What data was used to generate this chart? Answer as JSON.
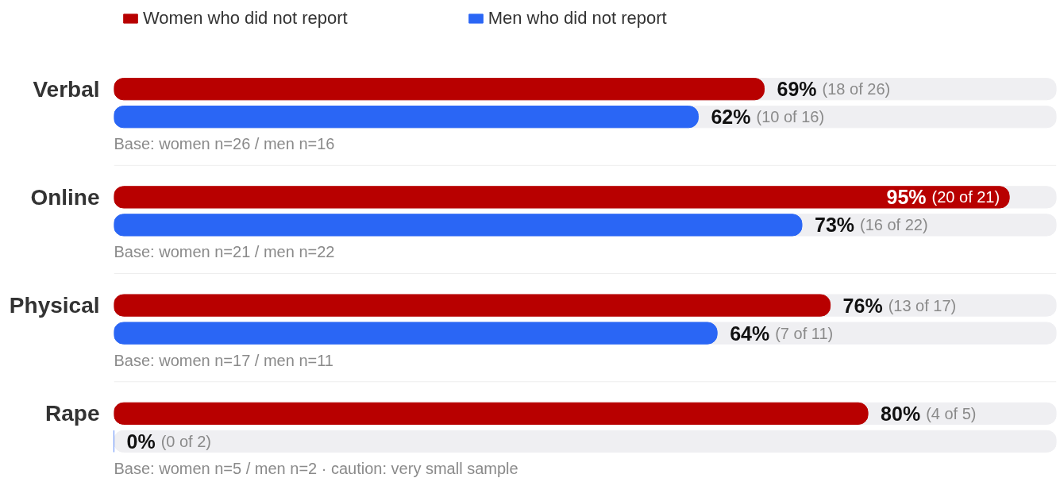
{
  "chart_data": {
    "type": "bar",
    "orientation": "horizontal",
    "categories": [
      "Verbal",
      "Online",
      "Physical",
      "Rape"
    ],
    "series": [
      {
        "name": "Women who did not report",
        "color": "#b80000",
        "values": [
          69,
          95,
          76,
          80
        ],
        "value_labels": [
          "69% (18 of 26)",
          "95% (20 of 21)",
          "76% (13 of 17)",
          "80% (4 of 5)"
        ]
      },
      {
        "name": "Men who did not report",
        "color": "#2a66f5",
        "values": [
          62,
          73,
          64,
          0
        ],
        "value_labels": [
          "62% (10 of 16)",
          "73% (16 of 22)",
          "64% (7 of 11)",
          "0% (0 of 2)"
        ]
      }
    ],
    "xlim": [
      0,
      100
    ],
    "tick_labels": "y",
    "grid": false,
    "legend": "top",
    "annotations": [
      "Base: women n=26 / men n=16",
      "Base: women n=21 / men n=22",
      "Base: women n=17 / men n=11",
      "Base: women n=5 / men n=2 · caution: very small sample"
    ]
  }
}
